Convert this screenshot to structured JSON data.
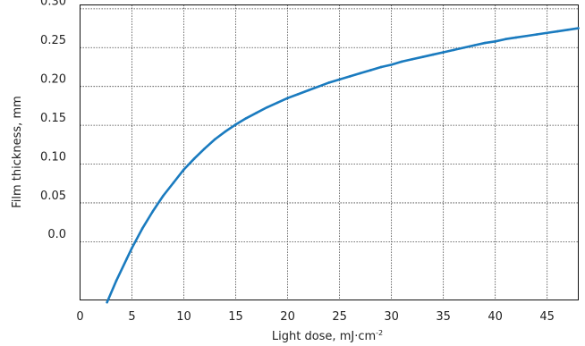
{
  "chart_data": {
    "type": "line",
    "xlabel": "Light dose, mJ·cm",
    "xlabel_superscript": "-2",
    "ylabel": "Film thickness, mm",
    "xlim": [
      0,
      48
    ],
    "ylim": [
      -0.075,
      0.305
    ],
    "grid": true,
    "x_ticks": [
      0,
      5,
      10,
      15,
      20,
      25,
      30,
      35,
      40,
      45
    ],
    "x_tick_labels": [
      "0",
      "5",
      "10",
      "15",
      "20",
      "25",
      "30",
      "35",
      "40",
      "45"
    ],
    "y_ticks": [
      0.0,
      0.05,
      0.1,
      0.15,
      0.2,
      0.25,
      0.3
    ],
    "y_tick_labels": [
      "0.0",
      "0.05",
      "0.10",
      "0.15",
      "0.20",
      "0.25",
      "0.30"
    ],
    "y_label_offset": 0.01,
    "series_color": "#1a7bbf",
    "series": [
      {
        "x": [
          2.6,
          3.5,
          4.5,
          5.0,
          6,
          7,
          8,
          9,
          10,
          11,
          12,
          13,
          14,
          15,
          16,
          17,
          18,
          19,
          20,
          21,
          22,
          23,
          24,
          25,
          26,
          27,
          28,
          29,
          30,
          31,
          32,
          33,
          34,
          35,
          36,
          37,
          38,
          39,
          40,
          41,
          42,
          43,
          44,
          45,
          46,
          47,
          48
        ],
        "y": [
          -0.078,
          -0.05,
          -0.022,
          -0.008,
          0.017,
          0.039,
          0.059,
          0.076,
          0.093,
          0.107,
          0.12,
          0.132,
          0.142,
          0.151,
          0.159,
          0.166,
          0.173,
          0.179,
          0.185,
          0.19,
          0.195,
          0.2,
          0.205,
          0.209,
          0.213,
          0.217,
          0.221,
          0.225,
          0.228,
          0.232,
          0.235,
          0.238,
          0.241,
          0.244,
          0.247,
          0.25,
          0.253,
          0.256,
          0.258,
          0.261,
          0.263,
          0.265,
          0.267,
          0.269,
          0.271,
          0.273,
          0.275
        ]
      }
    ]
  }
}
